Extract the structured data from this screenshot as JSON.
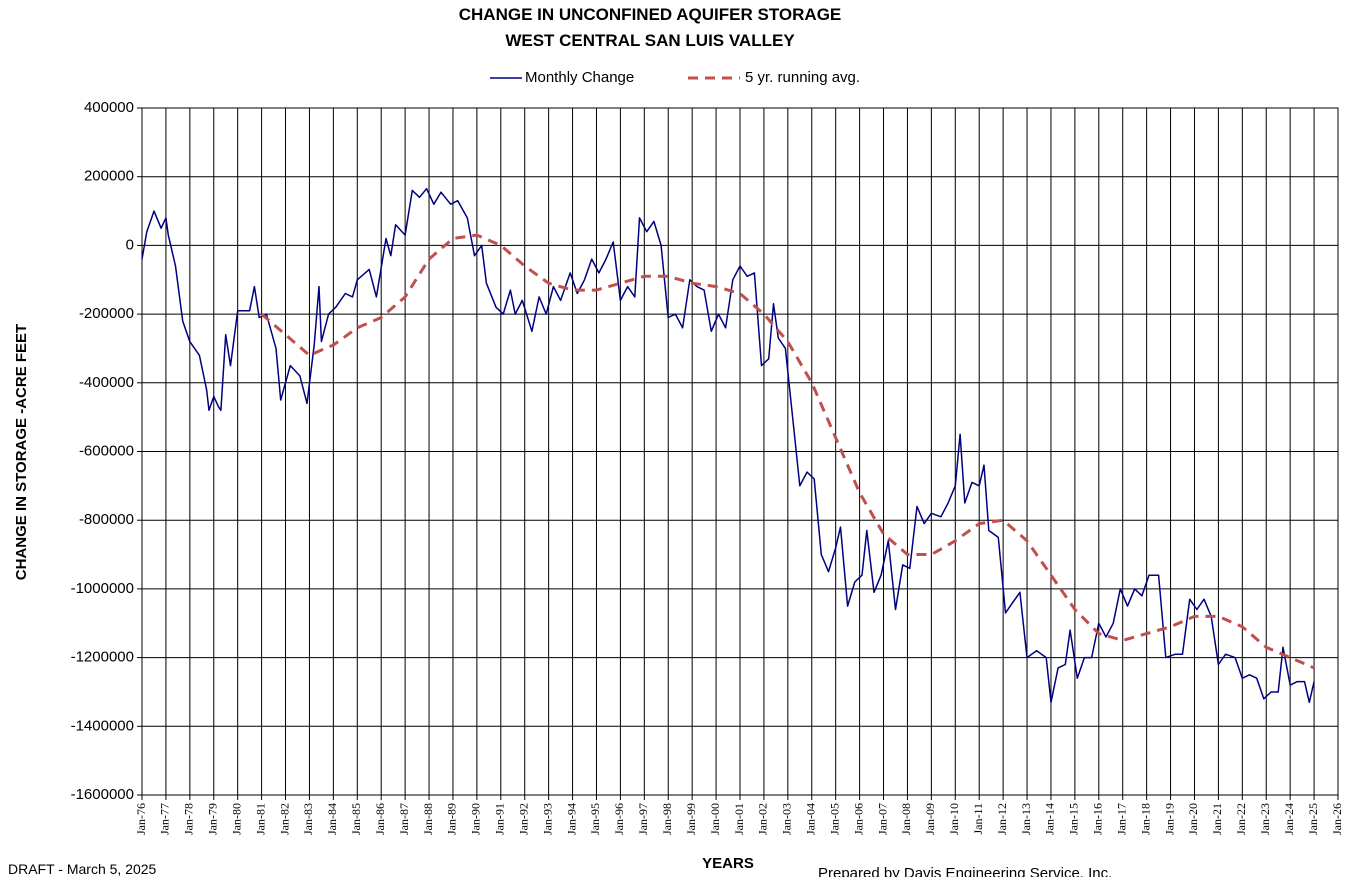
{
  "chart_data": {
    "type": "line",
    "title": "CHANGE IN UNCONFINED AQUIFER STORAGE",
    "subtitle": "WEST CENTRAL SAN LUIS VALLEY",
    "x_label": "YEARS",
    "y_label": "CHANGE IN STORAGE -ACRE FEET",
    "footer_left": "DRAFT - March 5, 2025",
    "footer_right": "Prepared by Davis Engineering Service, Inc,",
    "grid": true,
    "xlim": [
      1976,
      2026
    ],
    "ylim": [
      -1600000,
      400000
    ],
    "yticks": [
      400000,
      200000,
      0,
      -200000,
      -400000,
      -600000,
      -800000,
      -1000000,
      -1200000,
      -1400000,
      -1600000
    ],
    "xticks": [
      {
        "value": 1976,
        "label": "Jan-76"
      },
      {
        "value": 1977,
        "label": "Jan-77"
      },
      {
        "value": 1978,
        "label": "Jan-78"
      },
      {
        "value": 1979,
        "label": "Jan-79"
      },
      {
        "value": 1980,
        "label": "Jan-80"
      },
      {
        "value": 1981,
        "label": "Jan-81"
      },
      {
        "value": 1982,
        "label": "Jan-82"
      },
      {
        "value": 1983,
        "label": "Jan-83"
      },
      {
        "value": 1984,
        "label": "Jan-84"
      },
      {
        "value": 1985,
        "label": "Jan-85"
      },
      {
        "value": 1986,
        "label": "Jan-86"
      },
      {
        "value": 1987,
        "label": "Jan-87"
      },
      {
        "value": 1988,
        "label": "Jan-88"
      },
      {
        "value": 1989,
        "label": "Jan-89"
      },
      {
        "value": 1990,
        "label": "Jan-90"
      },
      {
        "value": 1991,
        "label": "Jan-91"
      },
      {
        "value": 1992,
        "label": "Jan-92"
      },
      {
        "value": 1993,
        "label": "Jan-93"
      },
      {
        "value": 1994,
        "label": "Jan-94"
      },
      {
        "value": 1995,
        "label": "Jan-95"
      },
      {
        "value": 1996,
        "label": "Jan-96"
      },
      {
        "value": 1997,
        "label": "Jan-97"
      },
      {
        "value": 1998,
        "label": "Jan-98"
      },
      {
        "value": 1999,
        "label": "Jan-99"
      },
      {
        "value": 2000,
        "label": "Jan-00"
      },
      {
        "value": 2001,
        "label": "Jan-01"
      },
      {
        "value": 2002,
        "label": "Jan-02"
      },
      {
        "value": 2003,
        "label": "Jan-03"
      },
      {
        "value": 2004,
        "label": "Jan-04"
      },
      {
        "value": 2005,
        "label": "Jan-05"
      },
      {
        "value": 2006,
        "label": "Jan-06"
      },
      {
        "value": 2007,
        "label": "Jan-07"
      },
      {
        "value": 2008,
        "label": "Jan-08"
      },
      {
        "value": 2009,
        "label": "Jan-09"
      },
      {
        "value": 2010,
        "label": "Jan-10"
      },
      {
        "value": 2011,
        "label": "Jan-11"
      },
      {
        "value": 2012,
        "label": "Jan-12"
      },
      {
        "value": 2013,
        "label": "Jan-13"
      },
      {
        "value": 2014,
        "label": "Jan-14"
      },
      {
        "value": 2015,
        "label": "Jan-15"
      },
      {
        "value": 2016,
        "label": "Jan-16"
      },
      {
        "value": 2017,
        "label": "Jan-17"
      },
      {
        "value": 2018,
        "label": "Jan-18"
      },
      {
        "value": 2019,
        "label": "Jan-19"
      },
      {
        "value": 2020,
        "label": "Jan-20"
      },
      {
        "value": 2021,
        "label": "Jan-21"
      },
      {
        "value": 2022,
        "label": "Jan-22"
      },
      {
        "value": 2023,
        "label": "Jan-23"
      },
      {
        "value": 2024,
        "label": "Jan-24"
      },
      {
        "value": 2025,
        "label": "Jan-25"
      },
      {
        "value": 2026,
        "label": "Jan-26"
      }
    ],
    "series": [
      {
        "name": "Monthly Change",
        "color": "#000080",
        "dashed": false,
        "x": [
          1976.0,
          1976.2,
          1976.5,
          1976.8,
          1977.0,
          1977.1,
          1977.4,
          1977.7,
          1978.0,
          1978.4,
          1978.7,
          1978.8,
          1979.0,
          1979.2,
          1979.3,
          1979.5,
          1979.7,
          1980.0,
          1980.5,
          1980.7,
          1980.9,
          1981.2,
          1981.6,
          1981.8,
          1982.2,
          1982.6,
          1982.9,
          1983.2,
          1983.4,
          1983.5,
          1983.8,
          1984.1,
          1984.5,
          1984.8,
          1985.0,
          1985.5,
          1985.8,
          1986.2,
          1986.4,
          1986.6,
          1987.0,
          1987.3,
          1987.6,
          1987.9,
          1988.2,
          1988.5,
          1988.9,
          1989.2,
          1989.6,
          1989.9,
          1990.2,
          1990.4,
          1990.8,
          1991.1,
          1991.4,
          1991.6,
          1991.9,
          1992.3,
          1992.6,
          1992.9,
          1993.2,
          1993.5,
          1993.9,
          1994.2,
          1994.5,
          1994.8,
          1995.1,
          1995.4,
          1995.7,
          1996.0,
          1996.3,
          1996.6,
          1996.8,
          1997.1,
          1997.4,
          1997.7,
          1998.0,
          1998.3,
          1998.6,
          1998.9,
          1999.2,
          1999.5,
          1999.8,
          2000.1,
          2000.4,
          2000.7,
          2001.0,
          2001.3,
          2001.6,
          2001.9,
          2002.2,
          2002.4,
          2002.6,
          2002.9,
          2003.2,
          2003.5,
          2003.8,
          2004.1,
          2004.4,
          2004.7,
          2005.0,
          2005.2,
          2005.5,
          2005.8,
          2006.1,
          2006.3,
          2006.6,
          2006.9,
          2007.2,
          2007.5,
          2007.8,
          2008.1,
          2008.4,
          2008.7,
          2009.0,
          2009.4,
          2009.7,
          2010.0,
          2010.2,
          2010.4,
          2010.7,
          2011.0,
          2011.2,
          2011.4,
          2011.8,
          2012.1,
          2012.4,
          2012.7,
          2013.0,
          2013.4,
          2013.8,
          2014.0,
          2014.3,
          2014.6,
          2014.8,
          2015.1,
          2015.4,
          2015.7,
          2016.0,
          2016.3,
          2016.6,
          2016.9,
          2017.2,
          2017.5,
          2017.8,
          2018.1,
          2018.5,
          2018.8,
          2019.2,
          2019.5,
          2019.8,
          2020.1,
          2020.4,
          2020.7,
          2021.0,
          2021.3,
          2021.7,
          2022.0,
          2022.3,
          2022.6,
          2022.9,
          2023.2,
          2023.5,
          2023.7,
          2024.0,
          2024.3,
          2024.6,
          2024.8,
          2025.0
        ],
        "values": [
          -40000,
          40000,
          100000,
          50000,
          80000,
          30000,
          -60000,
          -220000,
          -280000,
          -320000,
          -420000,
          -480000,
          -440000,
          -470000,
          -480000,
          -260000,
          -350000,
          -190000,
          -190000,
          -120000,
          -210000,
          -200000,
          -300000,
          -450000,
          -350000,
          -380000,
          -460000,
          -290000,
          -120000,
          -280000,
          -200000,
          -180000,
          -140000,
          -150000,
          -100000,
          -70000,
          -150000,
          20000,
          -30000,
          60000,
          30000,
          160000,
          140000,
          165000,
          120000,
          155000,
          120000,
          130000,
          80000,
          -30000,
          0,
          -110000,
          -180000,
          -200000,
          -130000,
          -200000,
          -160000,
          -250000,
          -150000,
          -200000,
          -120000,
          -160000,
          -80000,
          -140000,
          -100000,
          -40000,
          -80000,
          -40000,
          10000,
          -160000,
          -120000,
          -150000,
          80000,
          40000,
          70000,
          0,
          -210000,
          -200000,
          -240000,
          -100000,
          -120000,
          -130000,
          -250000,
          -200000,
          -240000,
          -100000,
          -60000,
          -90000,
          -80000,
          -350000,
          -330000,
          -170000,
          -270000,
          -300000,
          -500000,
          -700000,
          -660000,
          -680000,
          -900000,
          -950000,
          -880000,
          -820000,
          -1050000,
          -980000,
          -960000,
          -830000,
          -1010000,
          -960000,
          -860000,
          -1060000,
          -930000,
          -940000,
          -760000,
          -810000,
          -780000,
          -790000,
          -750000,
          -700000,
          -550000,
          -750000,
          -690000,
          -700000,
          -640000,
          -830000,
          -850000,
          -1070000,
          -1040000,
          -1010000,
          -1200000,
          -1180000,
          -1200000,
          -1330000,
          -1230000,
          -1220000,
          -1120000,
          -1260000,
          -1200000,
          -1200000,
          -1100000,
          -1140000,
          -1100000,
          -1000000,
          -1050000,
          -1000000,
          -1020000,
          -960000,
          -960000,
          -1200000,
          -1190000,
          -1190000,
          -1030000,
          -1060000,
          -1030000,
          -1080000,
          -1220000,
          -1190000,
          -1200000,
          -1260000,
          -1250000,
          -1260000,
          -1320000,
          -1300000,
          -1300000,
          -1170000,
          -1280000,
          -1270000,
          -1270000,
          -1330000,
          -1270000
        ]
      },
      {
        "name": "5 yr. running avg.",
        "color": "#c0504d",
        "dashed": true,
        "x": [
          1981,
          1982,
          1983,
          1984,
          1985,
          1986,
          1987,
          1988,
          1989,
          1990,
          1991,
          1992,
          1993,
          1994,
          1995,
          1996,
          1997,
          1998,
          1999,
          2000,
          2001,
          2002,
          2003,
          2004,
          2005,
          2006,
          2007,
          2008,
          2009,
          2010,
          2011,
          2012,
          2013,
          2014,
          2015,
          2016,
          2017,
          2018,
          2019,
          2020,
          2021,
          2022,
          2023,
          2024,
          2025
        ],
        "values": [
          -200000,
          -260000,
          -320000,
          -290000,
          -240000,
          -210000,
          -150000,
          -40000,
          20000,
          30000,
          0,
          -60000,
          -110000,
          -130000,
          -130000,
          -110000,
          -90000,
          -90000,
          -110000,
          -120000,
          -140000,
          -200000,
          -280000,
          -400000,
          -560000,
          -720000,
          -840000,
          -900000,
          -900000,
          -860000,
          -810000,
          -800000,
          -860000,
          -960000,
          -1060000,
          -1130000,
          -1150000,
          -1130000,
          -1110000,
          -1080000,
          -1080000,
          -1110000,
          -1170000,
          -1200000,
          -1230000
        ]
      }
    ]
  }
}
